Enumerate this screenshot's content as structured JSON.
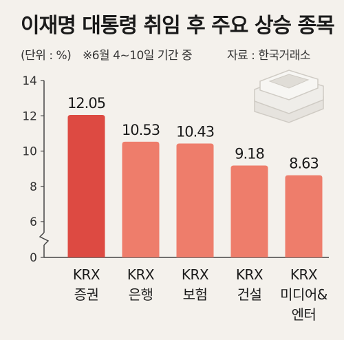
{
  "header": {
    "title": "이재명 대통령 취임 후 주요 상승 종목",
    "unit": "(단위 : %)",
    "period": "※6월 4~10일 기간 중",
    "source": "자료 : 한국거래소"
  },
  "colors": {
    "background": "#f4f1ec",
    "highlight_bar": "#dd4a42",
    "bar": "#ee7d6b",
    "axis": "#444444",
    "grid": "#e2ddd5"
  },
  "icons": [
    "stacked-coins-icon"
  ],
  "chart_data": {
    "type": "bar",
    "title": "이재명 대통령 취임 후 주요 상승 종목",
    "ylabel": "",
    "xlabel": "",
    "ylim": [
      0,
      14
    ],
    "axis_break": true,
    "y_ticks": [
      "0",
      "6",
      "8",
      "10",
      "12",
      "14"
    ],
    "categories": [
      [
        "KRX",
        "증권"
      ],
      [
        "KRX",
        "은행"
      ],
      [
        "KRX",
        "보험"
      ],
      [
        "KRX",
        "건설"
      ],
      [
        "KRX",
        "미디어&",
        "엔터"
      ]
    ],
    "values": [
      12.05,
      10.53,
      10.43,
      9.18,
      8.63
    ],
    "value_labels": [
      "12.05",
      "10.53",
      "10.43",
      "9.18",
      "8.63"
    ],
    "highlight_index": 0,
    "grid": false,
    "legend": "none"
  }
}
